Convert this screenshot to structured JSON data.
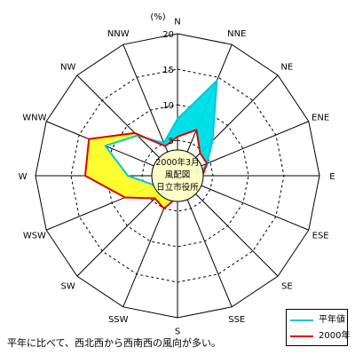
{
  "chart_data": {
    "type": "radar",
    "unit_label": "(%)",
    "directions": [
      "N",
      "NNE",
      "NE",
      "ENE",
      "E",
      "ESE",
      "SE",
      "SSE",
      "S",
      "SSW",
      "SW",
      "WSW",
      "W",
      "WNW",
      "NW",
      "NNW"
    ],
    "radial_ticks": [
      0,
      5,
      10,
      15,
      20
    ],
    "rmax": 20,
    "center_label": [
      "2000年3月",
      "風配図",
      "日立市役所"
    ],
    "series": [
      {
        "name": "平年値",
        "color": "#00c8d8",
        "values": [
          8.0,
          14.5,
          7.0,
          4.5,
          3.0,
          2.5,
          2.0,
          2.0,
          2.5,
          3.0,
          2.5,
          3.5,
          7.0,
          11.0,
          8.0,
          5.0
        ]
      },
      {
        "name": "2000年",
        "color": "#e00000",
        "values": [
          5.5,
          7.0,
          4.5,
          4.5,
          3.5,
          3.0,
          3.0,
          2.5,
          3.0,
          5.0,
          4.5,
          8.0,
          13.0,
          13.5,
          8.5,
          4.5
        ]
      }
    ],
    "fill_colors": {
      "annual_excess": "#00e0e8",
      "year_excess": "#ffff30"
    }
  },
  "caption": "平年に比べて、西北西から西南西の風向が多い。"
}
